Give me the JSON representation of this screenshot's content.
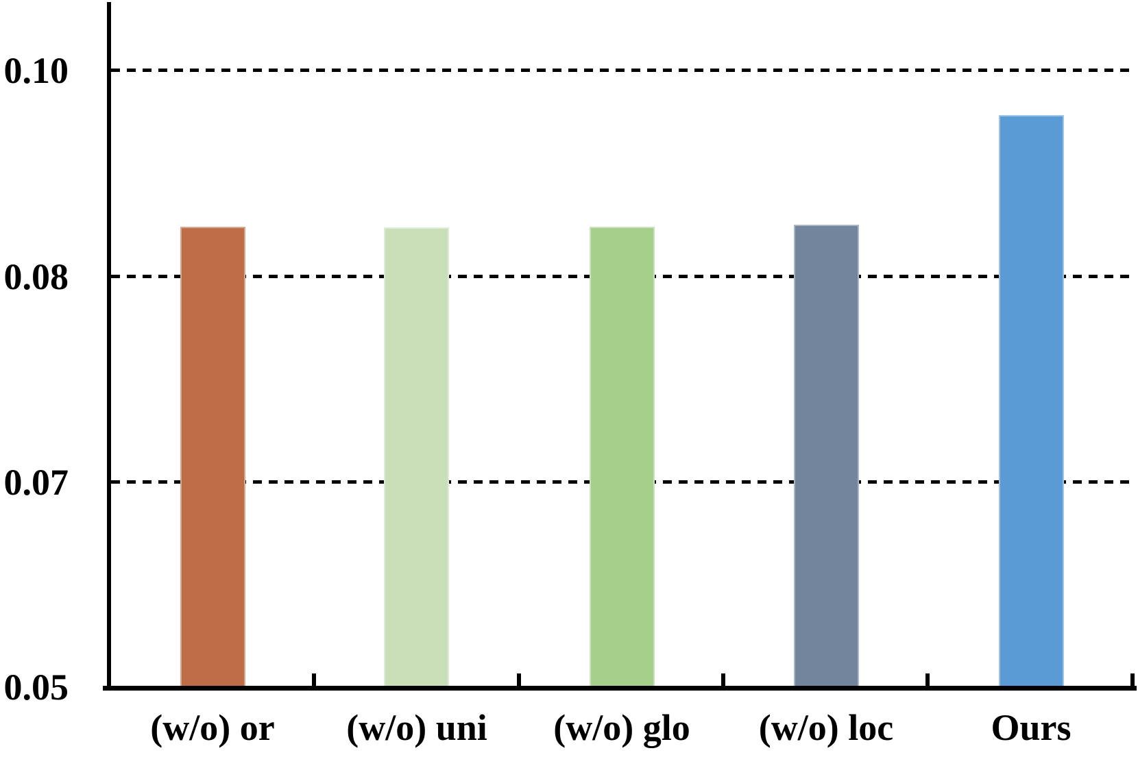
{
  "chart_data": {
    "type": "bar",
    "title": "",
    "xlabel": "",
    "ylabel": "",
    "categories": [
      "(w/o) or",
      "(w/o) uni",
      "(w/o) glo",
      "(w/o) loc",
      "Ours"
    ],
    "values": [
      0.0848,
      0.0847,
      0.0848,
      0.085,
      0.0956
    ],
    "bar_colors": [
      "#BE6D46",
      "#C9DFB7",
      "#A6CF8C",
      "#73859D",
      "#5B9BD5"
    ],
    "bar_edge_colors": [
      "#D8A790",
      "#DFECD4",
      "#CAE2BA",
      "#ABB6C4",
      "#9DC3E6"
    ],
    "y_ticks": [
      {
        "value": 0.05,
        "label": "0.05",
        "gridline": false
      },
      {
        "value": 0.07,
        "label": "0.07",
        "gridline": true
      },
      {
        "value": 0.08,
        "label": "0.08",
        "gridline": true
      },
      {
        "value": 0.1,
        "label": "0.10",
        "gridline": true
      }
    ],
    "y_tick_spacing": "uniform",
    "ylim": [
      0.05,
      0.1066
    ],
    "grid": "horizontal-dashed",
    "legend": "none",
    "axis_color": "#000000",
    "text_color": "#000000",
    "background_color": "#FFFFFF"
  }
}
